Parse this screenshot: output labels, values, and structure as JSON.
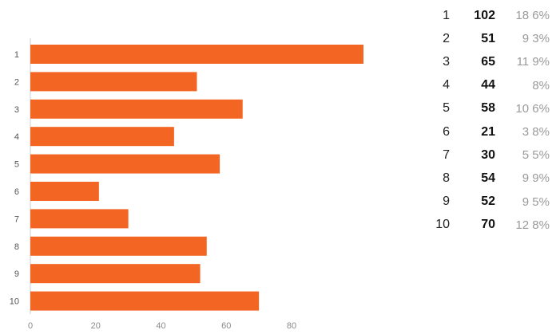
{
  "chart_data": {
    "type": "bar",
    "orientation": "horizontal",
    "categories": [
      "1",
      "2",
      "3",
      "4",
      "5",
      "6",
      "7",
      "8",
      "9",
      "10"
    ],
    "values": [
      102,
      51,
      65,
      44,
      58,
      21,
      30,
      54,
      52,
      70
    ],
    "xlim": [
      0,
      102
    ],
    "xticks": [
      "0",
      "20",
      "40",
      "60",
      "80"
    ],
    "bar_color": "#F26522",
    "grid": false,
    "legend": "none"
  },
  "summary": {
    "rows": [
      {
        "label": "1",
        "count": "102",
        "percent": "18 6%"
      },
      {
        "label": "2",
        "count": "51",
        "percent": "9 3%"
      },
      {
        "label": "3",
        "count": "65",
        "percent": "11 9%"
      },
      {
        "label": "4",
        "count": "44",
        "percent": "8%"
      },
      {
        "label": "5",
        "count": "58",
        "percent": "10 6%"
      },
      {
        "label": "6",
        "count": "21",
        "percent": "3 8%"
      },
      {
        "label": "7",
        "count": "30",
        "percent": "5 5%"
      },
      {
        "label": "8",
        "count": "54",
        "percent": "9 9%"
      },
      {
        "label": "9",
        "count": "52",
        "percent": "9 5%"
      },
      {
        "label": "10",
        "count": "70",
        "percent": "12 8%"
      }
    ]
  }
}
